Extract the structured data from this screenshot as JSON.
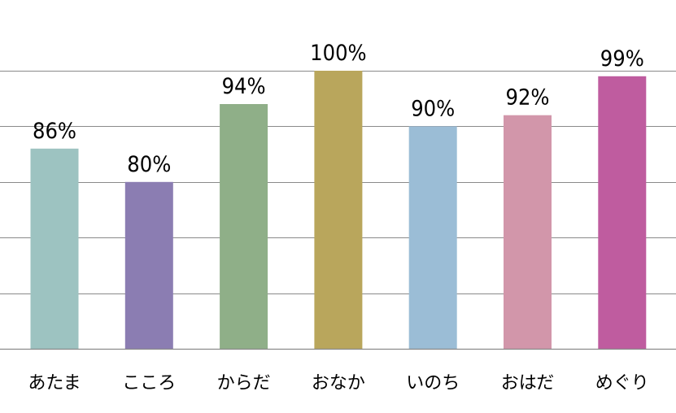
{
  "chart_data": {
    "type": "bar",
    "title": "",
    "xlabel": "",
    "ylabel": "",
    "categories": [
      "あたま",
      "こころ",
      "からだ",
      "おなか",
      "いのち",
      "おはだ",
      "めぐり"
    ],
    "values": [
      86,
      80,
      94,
      100,
      90,
      92,
      99
    ],
    "data_labels": [
      "86%",
      "80%",
      "94%",
      "100%",
      "90%",
      "92%",
      "99%"
    ],
    "colors": [
      "#9dc3c1",
      "#8b7db2",
      "#8faf88",
      "#b9a65c",
      "#9bbdd6",
      "#d296aa",
      "#bf5c9f"
    ],
    "ylim": [
      50,
      100
    ],
    "ygrid_values": [
      60,
      70,
      80,
      90,
      100
    ],
    "grid": true,
    "legend": "none"
  }
}
